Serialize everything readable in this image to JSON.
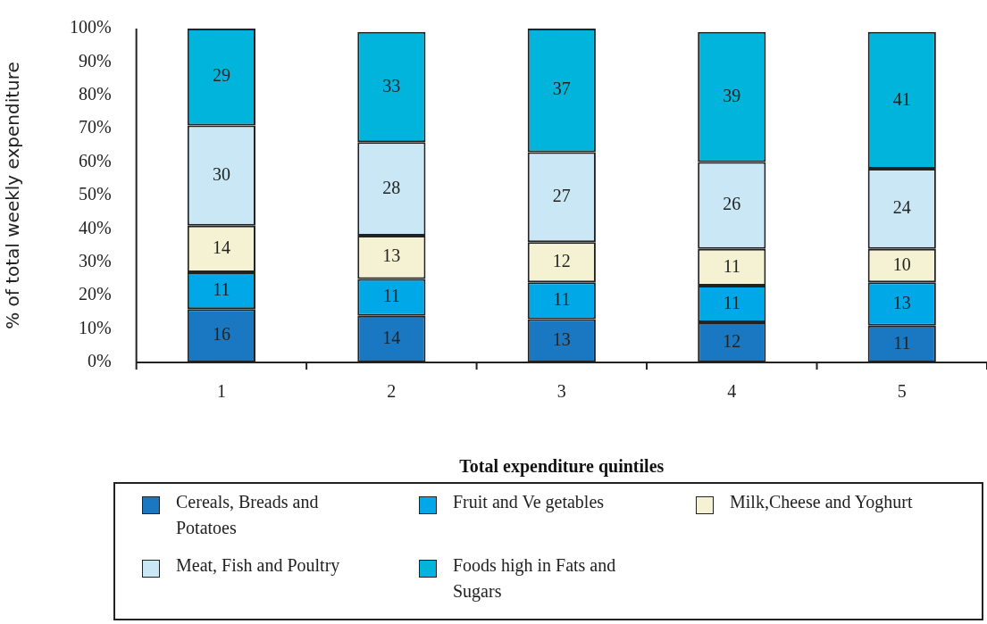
{
  "chart_data": {
    "type": "bar",
    "stacked": true,
    "xlabel": "Total expenditure quintiles",
    "ylabel": "% of total weekly expenditure",
    "categories": [
      "1",
      "2",
      "3",
      "4",
      "5"
    ],
    "series": [
      {
        "name": "Cereals, Breads and Potatoes",
        "color": "#1a78c2",
        "values": [
          16,
          14,
          13,
          12,
          11
        ]
      },
      {
        "name": "Fruit and Ve getables",
        "color": "#00a8e8",
        "values": [
          11,
          11,
          11,
          11,
          13
        ]
      },
      {
        "name": "Milk,Cheese and Yoghurt",
        "color": "#f4f2d2",
        "values": [
          14,
          13,
          12,
          11,
          10
        ]
      },
      {
        "name": " Meat, Fish and Poultry",
        "color": "#c9e7f5",
        "values": [
          30,
          28,
          27,
          26,
          24
        ]
      },
      {
        "name": "Foods high in Fats and Sugars",
        "color": "#00b4dc",
        "values": [
          29,
          33,
          37,
          39,
          41
        ]
      }
    ],
    "ylim": [
      0,
      100
    ],
    "yticks": [
      {
        "value": 0,
        "label": "0%"
      },
      {
        "value": 10,
        "label": "10%"
      },
      {
        "value": 20,
        "label": "20%"
      },
      {
        "value": 30,
        "label": "30%"
      },
      {
        "value": 40,
        "label": "40%"
      },
      {
        "value": 50,
        "label": "50%"
      },
      {
        "value": 60,
        "label": "60%"
      },
      {
        "value": 70,
        "label": "70%"
      },
      {
        "value": 80,
        "label": "80%"
      },
      {
        "value": 90,
        "label": "90%"
      },
      {
        "value": 100,
        "label": "100%"
      }
    ],
    "data_labels": true,
    "grid": false,
    "legend": "bottom"
  }
}
